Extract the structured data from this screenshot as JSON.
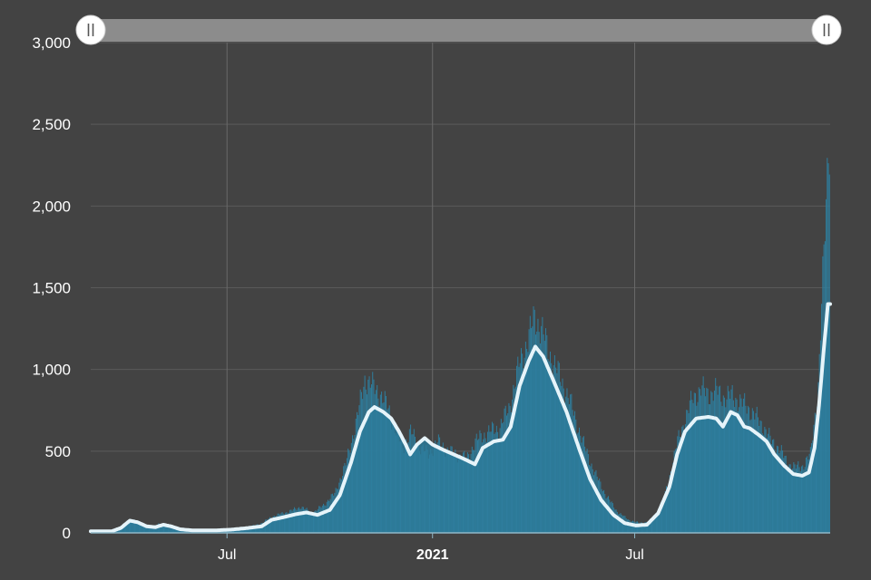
{
  "chart_data": {
    "type": "bar",
    "title": "",
    "xlabel": "",
    "ylabel": "",
    "ylim": [
      0,
      3000
    ],
    "xlim": [
      "2020-03-01",
      "2021-12-23"
    ],
    "y_ticks": [
      "0",
      "500",
      "1,000",
      "1,500",
      "2,000",
      "2,500",
      "3,000"
    ],
    "y_tick_values": [
      0,
      500,
      1000,
      1500,
      2000,
      2500,
      3000
    ],
    "x_ticks": [
      {
        "label": "Jul",
        "date": "2020-07-01",
        "bold": false
      },
      {
        "label": "2021",
        "date": "2021-01-01",
        "bold": true
      },
      {
        "label": "Jul",
        "date": "2021-07-01",
        "bold": false
      }
    ],
    "grid": true,
    "colors": {
      "background": "#434343",
      "bars": "#2e7e9e",
      "area": "#2a7594",
      "average_line": "#e6f4fa",
      "gridline": "#5a5a5a",
      "axis": "#8fb8c8",
      "slider_track": "#8c8c8c",
      "slider_handle": "#ffffff"
    },
    "series": [
      {
        "type": "bar",
        "description": "daily values",
        "points": [
          [
            "2020-03-01",
            0
          ],
          [
            "2020-03-25",
            10
          ],
          [
            "2020-04-01",
            55
          ],
          [
            "2020-04-05",
            85
          ],
          [
            "2020-04-12",
            60
          ],
          [
            "2020-04-20",
            35
          ],
          [
            "2020-05-01",
            55
          ],
          [
            "2020-05-10",
            25
          ],
          [
            "2020-05-25",
            18
          ],
          [
            "2020-06-10",
            15
          ],
          [
            "2020-06-25",
            20
          ],
          [
            "2020-07-10",
            30
          ],
          [
            "2020-07-25",
            45
          ],
          [
            "2020-08-01",
            60
          ],
          [
            "2020-08-10",
            100
          ],
          [
            "2020-08-25",
            130
          ],
          [
            "2020-09-05",
            160
          ],
          [
            "2020-09-15",
            120
          ],
          [
            "2020-09-25",
            170
          ],
          [
            "2020-10-05",
            240
          ],
          [
            "2020-10-15",
            420
          ],
          [
            "2020-10-25",
            700
          ],
          [
            "2020-11-01",
            940
          ],
          [
            "2020-11-08",
            900
          ],
          [
            "2020-11-15",
            850
          ],
          [
            "2020-11-22",
            760
          ],
          [
            "2020-11-30",
            600
          ],
          [
            "2020-12-05",
            520
          ],
          [
            "2020-12-12",
            620
          ],
          [
            "2020-12-20",
            530
          ],
          [
            "2020-12-28",
            480
          ],
          [
            "2021-01-05",
            560
          ],
          [
            "2021-01-15",
            500
          ],
          [
            "2021-01-25",
            470
          ],
          [
            "2021-02-01",
            460
          ],
          [
            "2021-02-08",
            560
          ],
          [
            "2021-02-20",
            620
          ],
          [
            "2021-03-01",
            640
          ],
          [
            "2021-03-10",
            760
          ],
          [
            "2021-03-20",
            1050
          ],
          [
            "2021-03-28",
            1200
          ],
          [
            "2021-04-02",
            1320
          ],
          [
            "2021-04-08",
            1250
          ],
          [
            "2021-04-15",
            1100
          ],
          [
            "2021-04-25",
            950
          ],
          [
            "2021-05-05",
            780
          ],
          [
            "2021-05-15",
            560
          ],
          [
            "2021-05-25",
            380
          ],
          [
            "2021-06-05",
            230
          ],
          [
            "2021-06-15",
            130
          ],
          [
            "2021-06-25",
            80
          ],
          [
            "2021-07-05",
            60
          ],
          [
            "2021-07-15",
            70
          ],
          [
            "2021-07-25",
            160
          ],
          [
            "2021-08-01",
            350
          ],
          [
            "2021-08-08",
            560
          ],
          [
            "2021-08-15",
            700
          ],
          [
            "2021-08-22",
            830
          ],
          [
            "2021-08-29",
            880
          ],
          [
            "2021-09-05",
            850
          ],
          [
            "2021-09-12",
            870
          ],
          [
            "2021-09-19",
            830
          ],
          [
            "2021-09-26",
            840
          ],
          [
            "2021-10-03",
            800
          ],
          [
            "2021-10-10",
            770
          ],
          [
            "2021-10-17",
            710
          ],
          [
            "2021-10-24",
            650
          ],
          [
            "2021-10-31",
            560
          ],
          [
            "2021-11-07",
            520
          ],
          [
            "2021-11-14",
            430
          ],
          [
            "2021-11-21",
            400
          ],
          [
            "2021-11-28",
            410
          ],
          [
            "2021-12-05",
            480
          ],
          [
            "2021-12-12",
            900
          ],
          [
            "2021-12-16",
            1540
          ],
          [
            "2021-12-19",
            2020
          ],
          [
            "2021-12-21",
            2410
          ]
        ]
      },
      {
        "type": "line",
        "description": "moving average",
        "points": [
          [
            "2020-03-01",
            10
          ],
          [
            "2020-03-20",
            10
          ],
          [
            "2020-03-28",
            30
          ],
          [
            "2020-04-05",
            75
          ],
          [
            "2020-04-12",
            65
          ],
          [
            "2020-04-20",
            40
          ],
          [
            "2020-04-28",
            35
          ],
          [
            "2020-05-05",
            50
          ],
          [
            "2020-05-12",
            40
          ],
          [
            "2020-05-20",
            22
          ],
          [
            "2020-06-01",
            15
          ],
          [
            "2020-06-20",
            15
          ],
          [
            "2020-07-05",
            20
          ],
          [
            "2020-07-20",
            30
          ],
          [
            "2020-08-01",
            40
          ],
          [
            "2020-08-10",
            80
          ],
          [
            "2020-08-20",
            95
          ],
          [
            "2020-09-01",
            115
          ],
          [
            "2020-09-10",
            125
          ],
          [
            "2020-09-20",
            110
          ],
          [
            "2020-10-01",
            140
          ],
          [
            "2020-10-10",
            230
          ],
          [
            "2020-10-20",
            430
          ],
          [
            "2020-10-28",
            620
          ],
          [
            "2020-11-05",
            740
          ],
          [
            "2020-11-10",
            770
          ],
          [
            "2020-11-18",
            740
          ],
          [
            "2020-11-25",
            700
          ],
          [
            "2020-12-02",
            620
          ],
          [
            "2020-12-08",
            540
          ],
          [
            "2020-12-12",
            480
          ],
          [
            "2020-12-18",
            540
          ],
          [
            "2020-12-25",
            580
          ],
          [
            "2021-01-01",
            540
          ],
          [
            "2021-01-10",
            510
          ],
          [
            "2021-01-20",
            480
          ],
          [
            "2021-01-30",
            450
          ],
          [
            "2021-02-08",
            420
          ],
          [
            "2021-02-15",
            520
          ],
          [
            "2021-02-25",
            560
          ],
          [
            "2021-03-05",
            570
          ],
          [
            "2021-03-12",
            650
          ],
          [
            "2021-03-20",
            900
          ],
          [
            "2021-03-28",
            1050
          ],
          [
            "2021-04-03",
            1140
          ],
          [
            "2021-04-10",
            1080
          ],
          [
            "2021-04-20",
            920
          ],
          [
            "2021-05-01",
            740
          ],
          [
            "2021-05-12",
            520
          ],
          [
            "2021-05-22",
            330
          ],
          [
            "2021-06-01",
            200
          ],
          [
            "2021-06-12",
            110
          ],
          [
            "2021-06-22",
            60
          ],
          [
            "2021-07-02",
            45
          ],
          [
            "2021-07-12",
            50
          ],
          [
            "2021-07-22",
            120
          ],
          [
            "2021-08-01",
            280
          ],
          [
            "2021-08-08",
            480
          ],
          [
            "2021-08-15",
            620
          ],
          [
            "2021-08-25",
            700
          ],
          [
            "2021-09-05",
            710
          ],
          [
            "2021-09-12",
            700
          ],
          [
            "2021-09-18",
            650
          ],
          [
            "2021-09-25",
            740
          ],
          [
            "2021-10-01",
            720
          ],
          [
            "2021-10-07",
            650
          ],
          [
            "2021-10-12",
            640
          ],
          [
            "2021-10-20",
            600
          ],
          [
            "2021-10-27",
            560
          ],
          [
            "2021-11-03",
            480
          ],
          [
            "2021-11-12",
            410
          ],
          [
            "2021-11-20",
            360
          ],
          [
            "2021-11-28",
            350
          ],
          [
            "2021-12-04",
            370
          ],
          [
            "2021-12-09",
            520
          ],
          [
            "2021-12-13",
            780
          ],
          [
            "2021-12-17",
            1100
          ],
          [
            "2021-12-21",
            1400
          ]
        ]
      }
    ],
    "range_slider": {
      "start": 0,
      "end": 1
    }
  }
}
